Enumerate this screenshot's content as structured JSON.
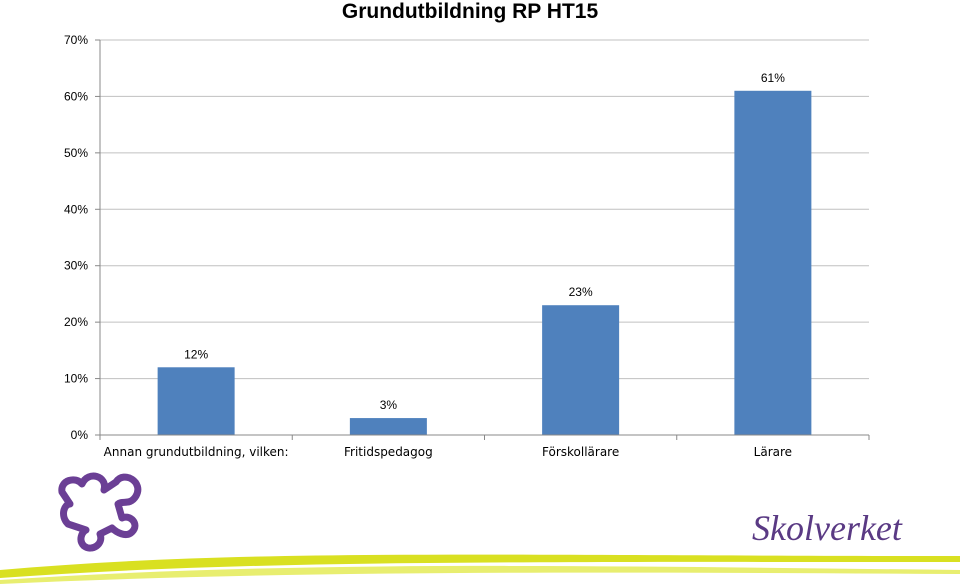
{
  "chart_data": {
    "type": "bar",
    "title": "Grundutbildning RP HT15",
    "xlabel": "",
    "ylabel": "",
    "categories": [
      "Annan grundutbildning, vilken:",
      "Fritidspedagog",
      "Förskollärare",
      "Lärare"
    ],
    "values": [
      12,
      3,
      23,
      61
    ],
    "data_labels": [
      "12%",
      "3%",
      "23%",
      "61%"
    ],
    "ylim": [
      0,
      70
    ],
    "yticks": [
      0,
      10,
      20,
      30,
      40,
      50,
      60,
      70
    ],
    "ytick_labels": [
      "0%",
      "10%",
      "20%",
      "30%",
      "40%",
      "50%",
      "60%",
      "70%"
    ],
    "grid": true,
    "legend": "none",
    "bar_color": "#4f81bd",
    "grid_color": "#c0c0c0"
  },
  "branding": {
    "logo_text": "Skolverket",
    "logo_color": "#5a3a84",
    "accent_color": "#d9e021",
    "icon": "puzzle-piece-icon"
  }
}
